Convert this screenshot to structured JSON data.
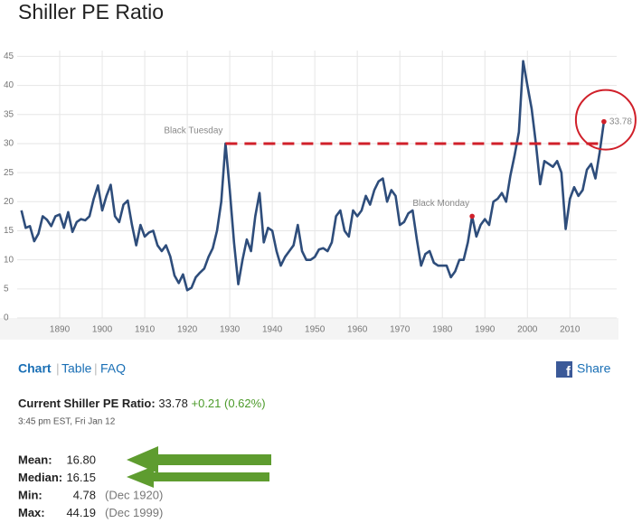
{
  "chart_data": {
    "type": "line",
    "title": "Shiller PE Ratio",
    "color": "#2e4d7b",
    "grid": true,
    "xlim": [
      1880,
      2021
    ],
    "ylim": [
      0,
      46
    ],
    "xticks": [
      1890,
      1900,
      1910,
      1920,
      1930,
      1940,
      1950,
      1960,
      1970,
      1980,
      1990,
      2000,
      2010
    ],
    "yticks": [
      0,
      5,
      10,
      15,
      20,
      25,
      30,
      35,
      40,
      45
    ],
    "x": [
      1881,
      1882,
      1883,
      1884,
      1885,
      1886,
      1887,
      1888,
      1889,
      1890,
      1891,
      1892,
      1893,
      1894,
      1895,
      1896,
      1897,
      1898,
      1899,
      1900,
      1901,
      1902,
      1903,
      1904,
      1905,
      1906,
      1907,
      1908,
      1909,
      1910,
      1911,
      1912,
      1913,
      1914,
      1915,
      1916,
      1917,
      1918,
      1919,
      1920,
      1921,
      1922,
      1923,
      1924,
      1925,
      1926,
      1927,
      1928,
      1929,
      1930,
      1931,
      1932,
      1933,
      1934,
      1935,
      1936,
      1937,
      1938,
      1939,
      1940,
      1941,
      1942,
      1943,
      1944,
      1945,
      1946,
      1947,
      1948,
      1949,
      1950,
      1951,
      1952,
      1953,
      1954,
      1955,
      1956,
      1957,
      1958,
      1959,
      1960,
      1961,
      1962,
      1963,
      1964,
      1965,
      1966,
      1967,
      1968,
      1969,
      1970,
      1971,
      1972,
      1973,
      1974,
      1975,
      1976,
      1977,
      1978,
      1979,
      1980,
      1981,
      1982,
      1983,
      1984,
      1985,
      1986,
      1987,
      1988,
      1989,
      1990,
      1991,
      1992,
      1993,
      1994,
      1995,
      1996,
      1997,
      1998,
      1999,
      2000,
      2001,
      2002,
      2003,
      2004,
      2005,
      2006,
      2007,
      2008,
      2009,
      2010,
      2011,
      2012,
      2013,
      2014,
      2015,
      2016,
      2017,
      2018
    ],
    "values": [
      18.5,
      15.5,
      15.8,
      13.2,
      14.5,
      17.5,
      16.9,
      15.8,
      17.5,
      17.8,
      15.5,
      18.2,
      14.8,
      16.5,
      17.0,
      16.8,
      17.5,
      20.5,
      22.8,
      18.5,
      21.0,
      22.9,
      17.5,
      16.5,
      19.5,
      20.2,
      16.0,
      12.5,
      16.0,
      14.0,
      14.7,
      15.0,
      12.5,
      11.5,
      12.5,
      10.6,
      7.3,
      6.0,
      7.5,
      4.78,
      5.2,
      7.0,
      7.8,
      8.5,
      10.5,
      12.0,
      15.0,
      20.0,
      30.0,
      22.0,
      13.0,
      5.8,
      10.0,
      13.5,
      11.5,
      17.5,
      21.5,
      13.0,
      15.5,
      15.0,
      11.5,
      9.0,
      10.5,
      11.5,
      12.5,
      16.0,
      11.5,
      10.0,
      10.0,
      10.5,
      11.8,
      12.0,
      11.5,
      13.0,
      17.5,
      18.5,
      15.0,
      14.0,
      18.5,
      17.5,
      18.5,
      21.0,
      19.5,
      22.0,
      23.5,
      24.0,
      20.0,
      22.0,
      21.0,
      16.0,
      16.5,
      18.0,
      18.5,
      13.5,
      9.0,
      11.0,
      11.5,
      9.5,
      9.0,
      9.0,
      9.0,
      7.0,
      8.0,
      10.0,
      10.0,
      13.0,
      17.5,
      14.0,
      16.0,
      17.0,
      16.0,
      20.0,
      20.5,
      21.5,
      20.0,
      24.5,
      28.0,
      32.0,
      44.19,
      40.0,
      36.0,
      30.0,
      23.0,
      27.0,
      26.5,
      26.0,
      27.0,
      25.0,
      15.3,
      20.5,
      22.5,
      21.0,
      22.0,
      25.5,
      26.5,
      24.0,
      28.5,
      33.78
    ],
    "annotations": [
      {
        "text": "Black Tuesday",
        "x": 1929,
        "y": 30,
        "dot": false
      },
      {
        "text": "Black Monday",
        "x": 1987,
        "y": 17.5,
        "dot": true
      },
      {
        "text": "33.78",
        "x": 2018,
        "y": 33.78,
        "dot": true
      }
    ]
  },
  "nav": {
    "chart": "Chart",
    "table": "Table",
    "faq": "FAQ",
    "share": "Share"
  },
  "current": {
    "label": "Current Shiller PE Ratio:",
    "value": "33.78",
    "change": "+0.21 (0.62%)",
    "time": "3:45 pm EST, Fri Jan 12"
  },
  "stats": [
    {
      "label": "Mean:",
      "value": "16.80",
      "date": null
    },
    {
      "label": "Median:",
      "value": "16.15",
      "date": null
    },
    {
      "label": "Min:",
      "value": "4.78",
      "date": "(Dec 1920)"
    },
    {
      "label": "Max:",
      "value": "44.19",
      "date": "(Dec 1999)"
    }
  ]
}
